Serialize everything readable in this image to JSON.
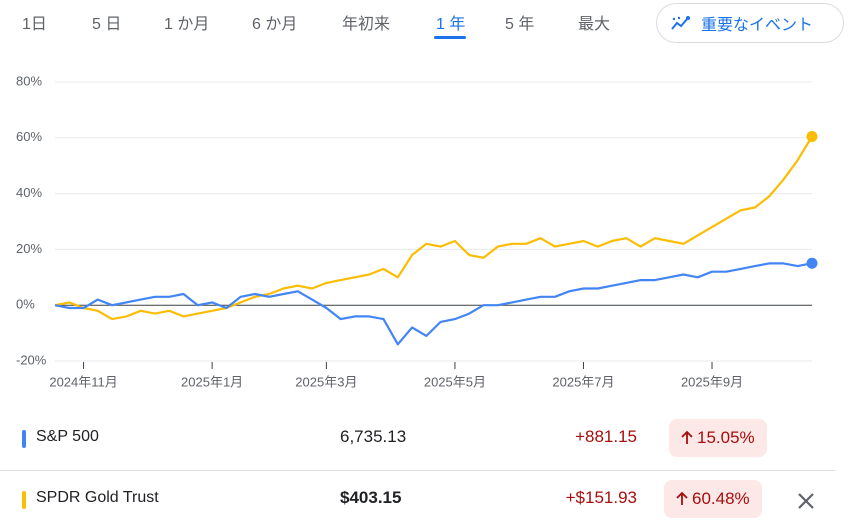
{
  "tabs": [
    "1日",
    "5 日",
    "1 か月",
    "6 か月",
    "年初来",
    "1 年",
    "5 年",
    "最大"
  ],
  "events_button": "重要なイベント",
  "chart_data": {
    "type": "line",
    "categories": [
      null,
      null,
      "2024年11月",
      null,
      null,
      null,
      null,
      null,
      null,
      null,
      null,
      "2025年1月",
      null,
      null,
      null,
      null,
      null,
      null,
      null,
      "2025年3月",
      null,
      null,
      null,
      null,
      null,
      null,
      null,
      null,
      "2025年5月",
      null,
      null,
      null,
      null,
      null,
      null,
      null,
      null,
      "2025年7月",
      null,
      null,
      null,
      null,
      null,
      null,
      null,
      null,
      "2025年9月",
      null,
      null,
      null,
      null,
      null,
      null,
      null
    ],
    "series": [
      {
        "name": "S&P 500",
        "color": "#4285f4",
        "values": [
          0,
          -1,
          -1,
          2,
          0,
          1,
          2,
          3,
          3,
          4,
          0,
          1,
          -1,
          3,
          4,
          3,
          4,
          5,
          2,
          -1,
          -5,
          -4,
          -4,
          -5,
          -14,
          -8,
          -11,
          -6,
          -5,
          -3,
          0,
          0,
          1,
          2,
          3,
          3,
          5,
          6,
          6,
          7,
          8,
          9,
          9,
          10,
          11,
          10,
          12,
          12,
          13,
          14,
          15,
          15,
          14,
          15.05
        ]
      },
      {
        "name": "SPDR Gold Trust",
        "color": "#fbbc04",
        "values": [
          0,
          1,
          -1,
          -2,
          -5,
          -4,
          -2,
          -3,
          -2,
          -4,
          -3,
          -2,
          -1,
          1,
          3,
          4,
          6,
          7,
          6,
          8,
          9,
          10,
          11,
          13,
          10,
          18,
          22,
          21,
          23,
          18,
          17,
          21,
          22,
          22,
          24,
          21,
          22,
          23,
          21,
          23,
          24,
          21,
          24,
          23,
          22,
          25,
          28,
          31,
          34,
          35,
          39,
          45,
          52,
          60.48
        ]
      }
    ],
    "ylim": [
      -20,
      80
    ],
    "yticks": [
      {
        "value": -20,
        "label": "-20%"
      },
      {
        "value": 0,
        "label": "0%"
      },
      {
        "value": 20,
        "label": "20%"
      },
      {
        "value": 40,
        "label": "40%"
      },
      {
        "value": 60,
        "label": "60%"
      },
      {
        "value": 80,
        "label": "80%"
      }
    ],
    "grid": true
  },
  "rows": [
    {
      "price": "6,735.13",
      "change": "+881.15",
      "percent": "15.05%"
    },
    {
      "price": "$403.15",
      "change": "+$151.93",
      "percent": "60.48%"
    }
  ]
}
